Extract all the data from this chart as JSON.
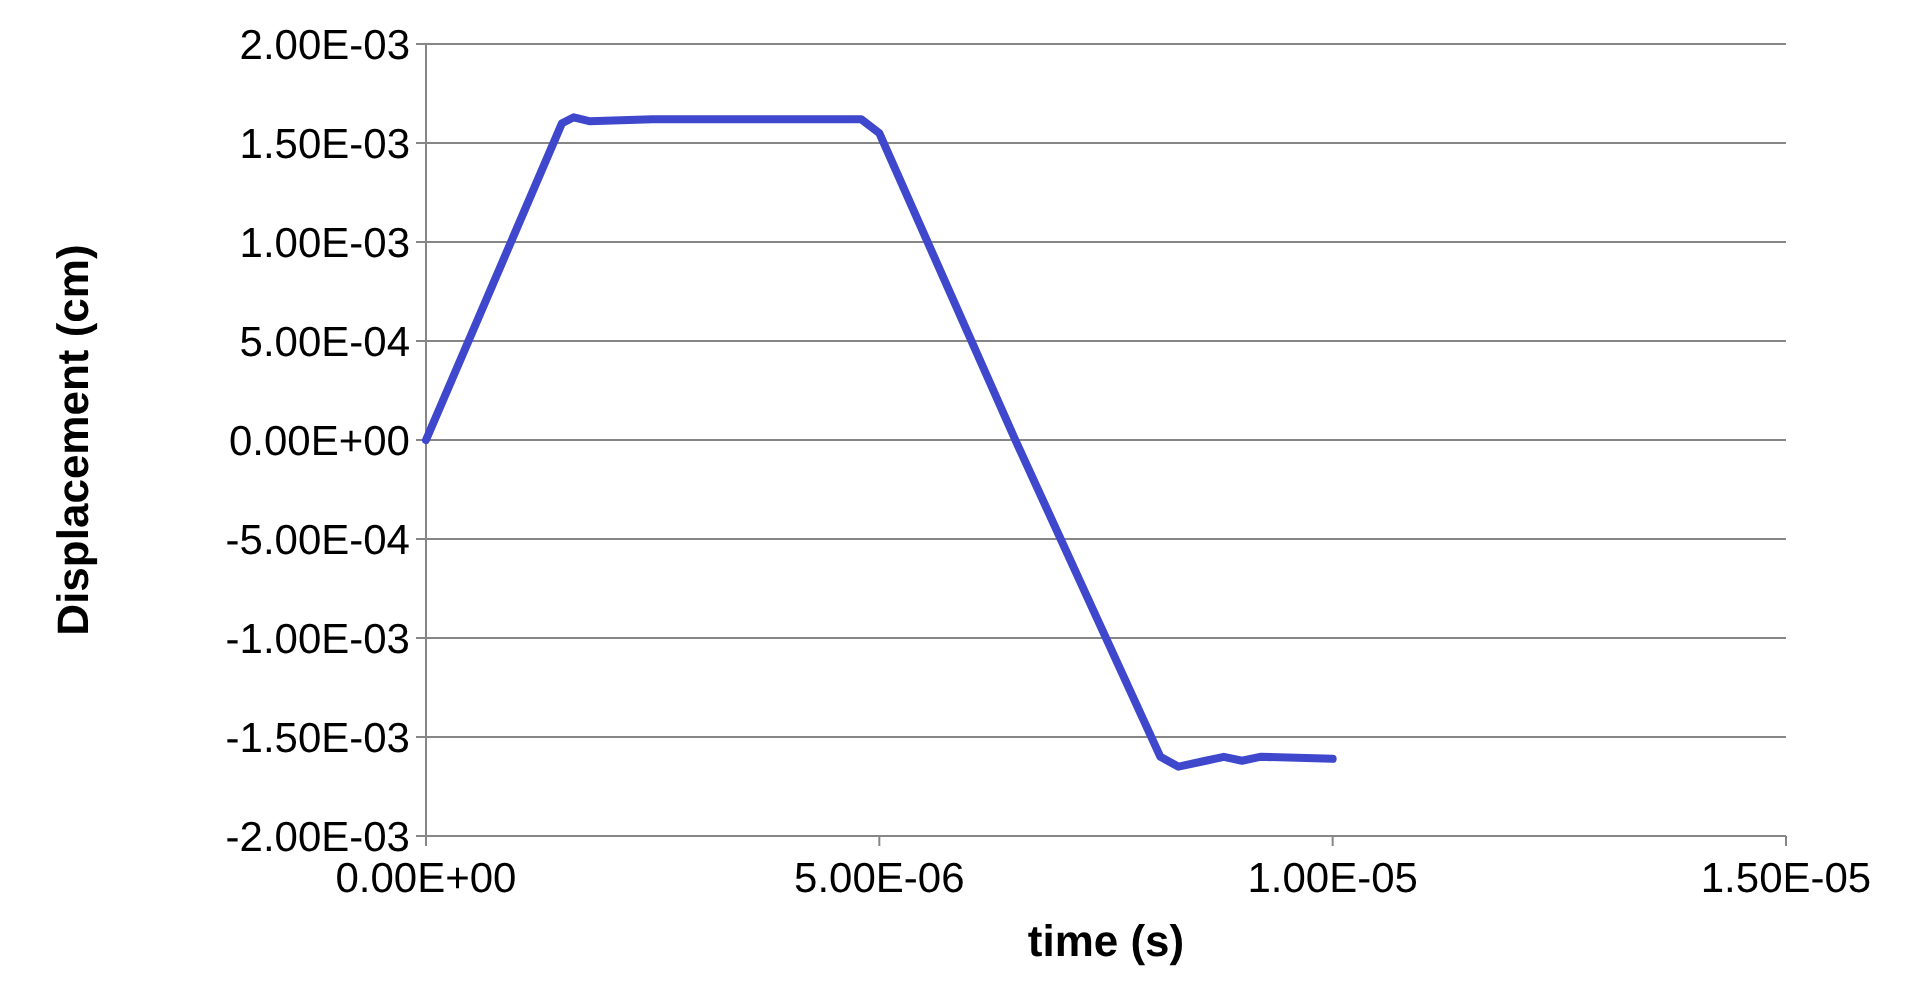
{
  "chart_data": {
    "type": "line",
    "xlabel": "time (s)",
    "ylabel": "Displacement (cm)",
    "xlim": [
      0,
      1.5e-05
    ],
    "ylim": [
      -0.002,
      0.002
    ],
    "xticks": [
      {
        "value": 0,
        "label": "0.00E+00"
      },
      {
        "value": 5e-06,
        "label": "5.00E-06"
      },
      {
        "value": 1e-05,
        "label": "1.00E-05"
      },
      {
        "value": 1.5e-05,
        "label": "1.50E-05"
      }
    ],
    "yticks": [
      {
        "value": -0.002,
        "label": "-2.00E-03"
      },
      {
        "value": -0.0015,
        "label": "-1.50E-03"
      },
      {
        "value": -0.001,
        "label": "-1.00E-03"
      },
      {
        "value": -0.0005,
        "label": "-5.00E-04"
      },
      {
        "value": 0,
        "label": "0.00E+00"
      },
      {
        "value": 0.0005,
        "label": "5.00E-04"
      },
      {
        "value": 0.001,
        "label": "1.00E-03"
      },
      {
        "value": 0.0015,
        "label": "1.50E-03"
      },
      {
        "value": 0.002,
        "label": "2.00E-03"
      }
    ],
    "grid": "y",
    "marker": "none",
    "line_style": "solid",
    "series": [
      {
        "color": "#3f48cc",
        "x": [
          0,
          1.5e-06,
          1.63e-06,
          1.8e-06,
          2.5e-06,
          3.5e-06,
          4.8e-06,
          5e-06,
          6.5e-06,
          8.1e-06,
          8.3e-06,
          8.6e-06,
          8.8e-06,
          9e-06,
          9.2e-06,
          1e-05
        ],
        "values": [
          0,
          0.0016,
          0.00163,
          0.00161,
          0.00162,
          0.00162,
          0.00162,
          0.00155,
          0,
          -0.0016,
          -0.00165,
          -0.00162,
          -0.0016,
          -0.00162,
          -0.0016,
          -0.00161
        ]
      }
    ]
  }
}
